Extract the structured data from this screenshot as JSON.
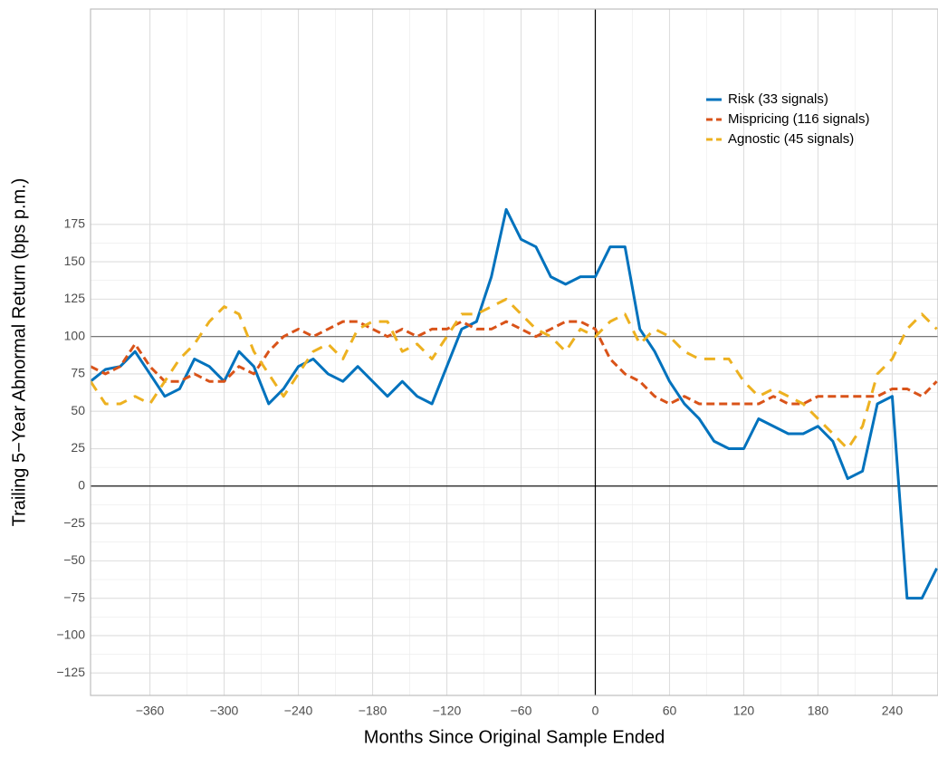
{
  "chart_data": {
    "type": "line",
    "xlabel": "Months Since Original Sample Ended",
    "ylabel": "Trailing 5−Year Abnormal Return (bps p.m.)",
    "x": [
      -408,
      -396,
      -384,
      -372,
      -360,
      -348,
      -336,
      -324,
      -312,
      -300,
      -288,
      -276,
      -264,
      -252,
      -240,
      -228,
      -216,
      -204,
      -192,
      -180,
      -168,
      -156,
      -144,
      -132,
      -120,
      -108,
      -96,
      -84,
      -72,
      -60,
      -48,
      -36,
      -24,
      -12,
      0,
      12,
      24,
      36,
      48,
      60,
      72,
      84,
      96,
      108,
      120,
      132,
      144,
      156,
      168,
      180,
      192,
      204,
      216,
      228,
      240,
      252,
      264,
      276
    ],
    "series": [
      {
        "name": "Risk (33 signals)",
        "color": "#0072bd",
        "linestyle": "solid",
        "values": [
          70,
          78,
          80,
          90,
          75,
          60,
          65,
          85,
          80,
          70,
          90,
          80,
          55,
          65,
          80,
          85,
          75,
          70,
          80,
          70,
          60,
          70,
          60,
          55,
          80,
          105,
          110,
          140,
          185,
          165,
          160,
          140,
          135,
          140,
          140,
          160,
          160,
          105,
          90,
          70,
          55,
          45,
          30,
          25,
          25,
          45,
          40,
          35,
          35,
          40,
          30,
          5,
          10,
          55,
          60,
          -75,
          -75,
          -55
        ]
      },
      {
        "name": "Mispricing (116 signals)",
        "color": "#d95319",
        "linestyle": "dashed",
        "values": [
          80,
          75,
          80,
          95,
          80,
          70,
          70,
          75,
          70,
          70,
          80,
          75,
          90,
          100,
          105,
          100,
          105,
          110,
          110,
          105,
          100,
          105,
          100,
          105,
          105,
          110,
          105,
          105,
          110,
          105,
          100,
          105,
          110,
          110,
          105,
          85,
          75,
          70,
          60,
          55,
          60,
          55,
          55,
          55,
          55,
          55,
          60,
          55,
          55,
          60,
          60,
          60,
          60,
          60,
          65,
          65,
          60,
          70
        ]
      },
      {
        "name": "Agnostic (45 signals)",
        "color": "#edb120",
        "linestyle": "longdash",
        "values": [
          70,
          55,
          55,
          60,
          55,
          70,
          85,
          95,
          110,
          120,
          115,
          90,
          75,
          60,
          75,
          90,
          95,
          85,
          105,
          110,
          110,
          90,
          95,
          85,
          100,
          115,
          115,
          120,
          125,
          115,
          105,
          100,
          90,
          105,
          100,
          110,
          115,
          95,
          105,
          100,
          90,
          85,
          85,
          85,
          70,
          60,
          65,
          60,
          55,
          45,
          35,
          25,
          40,
          75,
          85,
          105,
          115,
          105
        ]
      }
    ],
    "xlim": [
      -408,
      277
    ],
    "ylim": [
      -140,
      319
    ],
    "xticks": [
      {
        "value": -360,
        "label": "−360"
      },
      {
        "value": -300,
        "label": "−300"
      },
      {
        "value": -240,
        "label": "−240"
      },
      {
        "value": -180,
        "label": "−180"
      },
      {
        "value": -120,
        "label": "−120"
      },
      {
        "value": -60,
        "label": "−60"
      },
      0,
      60,
      120,
      180,
      240
    ],
    "yticks": [
      {
        "value": -125,
        "label": "−125"
      },
      {
        "value": -100,
        "label": "−100"
      },
      {
        "value": -75,
        "label": "−75"
      },
      {
        "value": -50,
        "label": "−50"
      },
      {
        "value": -25,
        "label": "−25"
      },
      0,
      25,
      50,
      75,
      100,
      125,
      150,
      175
    ],
    "hlines": [
      {
        "value": 0,
        "color": "#000000"
      },
      {
        "value": 100,
        "color": "#777777"
      }
    ],
    "vlines": [
      {
        "value": 0,
        "color": "#000000"
      }
    ],
    "grid": true,
    "legend": "upper right"
  }
}
